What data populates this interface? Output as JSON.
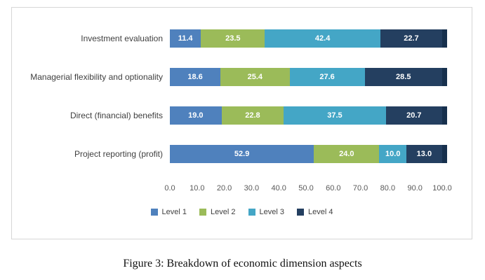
{
  "chart_data": {
    "type": "bar",
    "orientation": "horizontal-stacked",
    "categories": [
      "Investment evaluation",
      "Managerial flexibility and optionality",
      "Direct (financial) benefits",
      "Project reporting (profit)"
    ],
    "series": [
      {
        "name": "Level 1",
        "color": "#4f81bd",
        "values": [
          11.4,
          18.6,
          19.0,
          52.9
        ]
      },
      {
        "name": "Level 2",
        "color": "#9bbb59",
        "values": [
          23.5,
          25.4,
          22.8,
          24.0
        ]
      },
      {
        "name": "Level 3",
        "color": "#44a6c6",
        "values": [
          42.4,
          27.6,
          37.5,
          10.0
        ]
      },
      {
        "name": "Level 4",
        "color": "#243f60",
        "values": [
          22.7,
          28.5,
          20.7,
          13.0
        ]
      }
    ],
    "x_ticks": [
      "0.0",
      "10.0",
      "20.0",
      "30.0",
      "40.0",
      "50.0",
      "60.0",
      "70.0",
      "80.0",
      "90.0",
      "100.0"
    ],
    "xlim": [
      0,
      100
    ],
    "legend_position": "bottom",
    "grid": false,
    "title": ""
  },
  "caption": "Figure 3: Breakdown of economic dimension aspects"
}
